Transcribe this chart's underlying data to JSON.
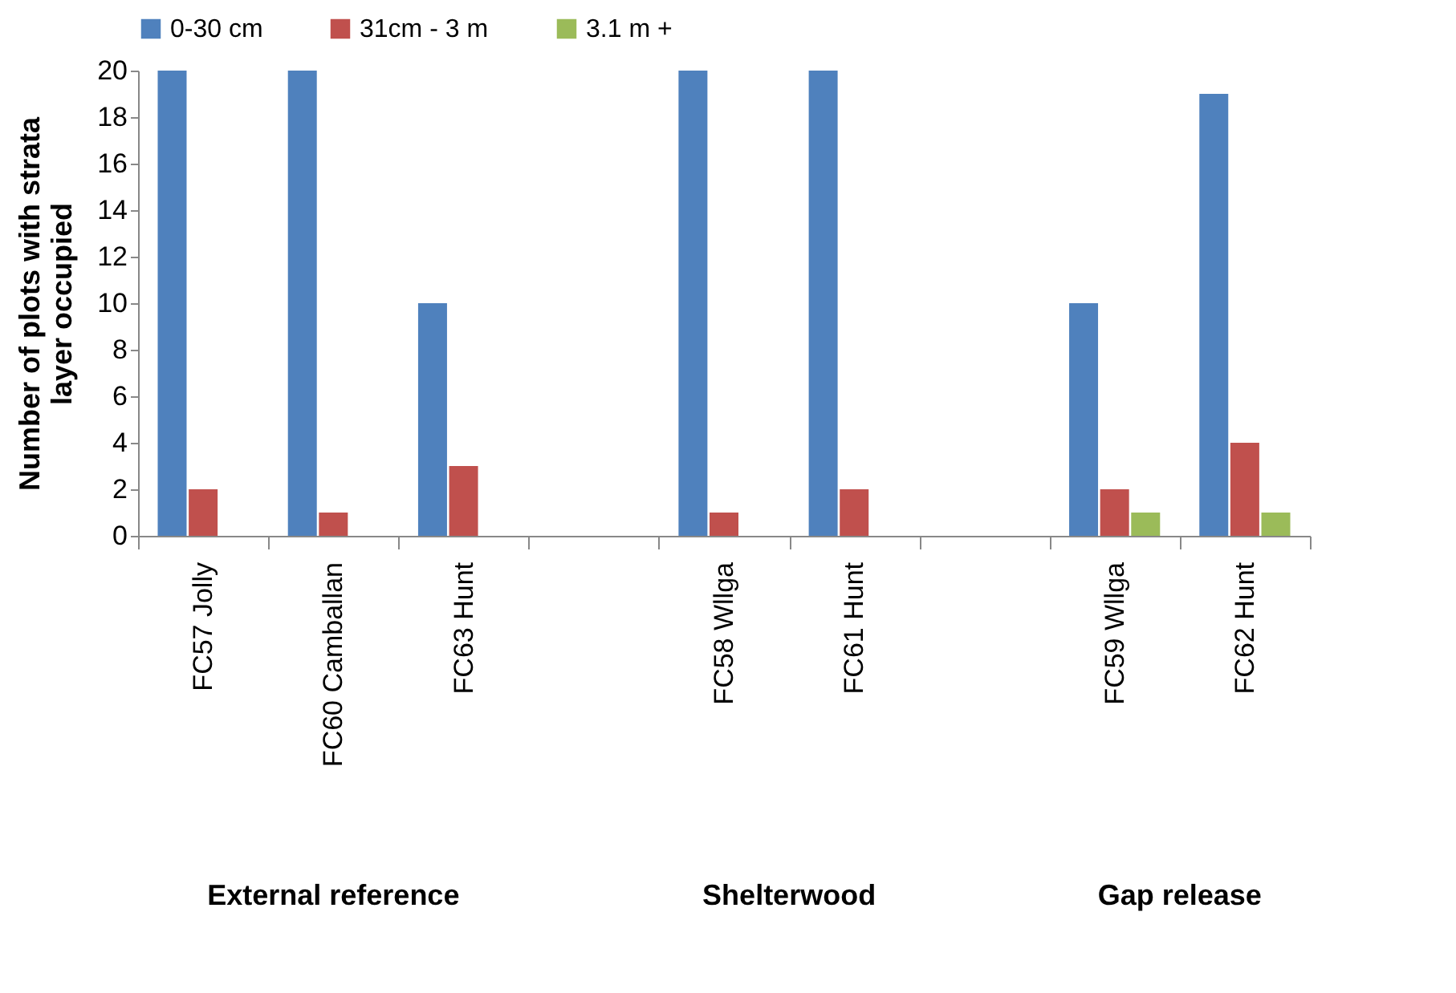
{
  "chart_data": {
    "type": "bar",
    "ylabel": "Number of plots with strata layer occupied",
    "categories": [
      "FC57  Jolly",
      "FC60 Camballan",
      "FC63 Hunt",
      null,
      "FC58 Wllga",
      "FC61 Hunt",
      null,
      "FC59 Wllga",
      "FC62 Hunt"
    ],
    "series": [
      {
        "name": "0-30 cm",
        "color": "#4f81bd",
        "values": [
          20,
          20,
          10,
          null,
          20,
          20,
          null,
          10,
          19
        ]
      },
      {
        "name": "31cm - 3 m",
        "color": "#c0504d",
        "values": [
          2,
          1,
          3,
          null,
          1,
          2,
          null,
          2,
          4
        ]
      },
      {
        "name": "3.1 m +",
        "color": "#9bbb59",
        "values": [
          0,
          0,
          0,
          null,
          0,
          0,
          null,
          1,
          1
        ]
      }
    ],
    "ylim": [
      0,
      20
    ],
    "yticks": [
      0,
      2,
      4,
      6,
      8,
      10,
      12,
      14,
      16,
      18,
      20
    ],
    "grid": false,
    "legend": "top",
    "annotations": [
      "External reference",
      "Shelterwood",
      "Gap release"
    ]
  }
}
